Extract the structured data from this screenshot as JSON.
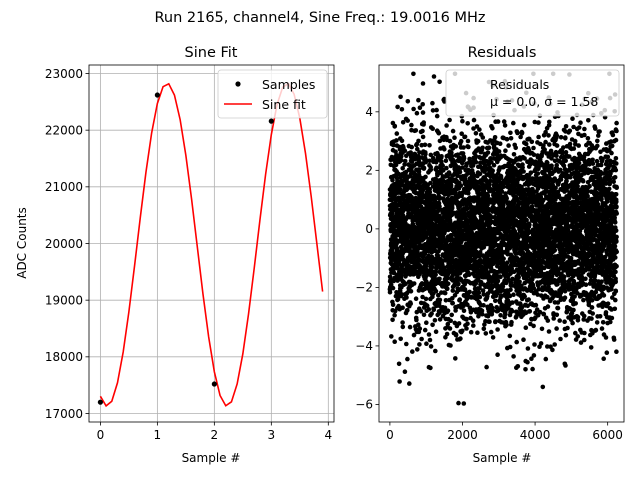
{
  "figure": {
    "suptitle": "Run 2165, channel4, Sine Freq.: 19.0016 MHz"
  },
  "chart_data": [
    {
      "type": "line",
      "title": "Sine Fit",
      "xlabel": "Sample #",
      "ylabel": "ADC Counts",
      "xlim": [
        -0.2,
        4.1
      ],
      "ylim": [
        16850,
        23150
      ],
      "xticks": [
        0,
        1,
        2,
        3,
        4
      ],
      "xtick_labels": [
        "0",
        "1",
        "2",
        "3",
        "4"
      ],
      "yticks": [
        17000,
        18000,
        19000,
        20000,
        21000,
        22000,
        23000
      ],
      "ytick_labels": [
        "17000",
        "18000",
        "19000",
        "20000",
        "21000",
        "22000",
        "23000"
      ],
      "grid": true,
      "legend_position": "top-right",
      "series": [
        {
          "name": "Samples",
          "kind": "scatter",
          "color": "#000000",
          "points": [
            [
              0,
              17200
            ],
            [
              1,
              22620
            ],
            [
              2,
              17520
            ],
            [
              3,
              22160
            ]
          ]
        },
        {
          "name": "Sine fit",
          "kind": "line",
          "color": "#ff0000",
          "fit": {
            "amplitude": 2850,
            "offset": 19980,
            "period": 2.105,
            "phase_peak": 1.17,
            "x_start": 0,
            "x_end": 3.9,
            "step": 0.1
          }
        }
      ]
    },
    {
      "type": "scatter",
      "title": "Residuals",
      "xlabel": "Sample #",
      "xlim": [
        -300,
        6450
      ],
      "ylim": [
        -6.6,
        5.6
      ],
      "xticks": [
        0,
        2000,
        4000,
        6000
      ],
      "xtick_labels": [
        "0",
        "2000",
        "4000",
        "6000"
      ],
      "yticks": [
        -6,
        -4,
        -2,
        0,
        2,
        4
      ],
      "ytick_labels": [
        "−6",
        "−4",
        "−2",
        "0",
        "2",
        "4"
      ],
      "grid": false,
      "legend_position": "top-right",
      "legend_title": "Residuals",
      "legend_stats": "μ = 0.0, σ = 1.58",
      "series": [
        {
          "name": "Residuals",
          "color": "#000000",
          "summary": {
            "n": 6250,
            "x_start": 0,
            "x_end": 6250,
            "mean": 0.0,
            "sigma": 1.58
          }
        }
      ]
    }
  ]
}
